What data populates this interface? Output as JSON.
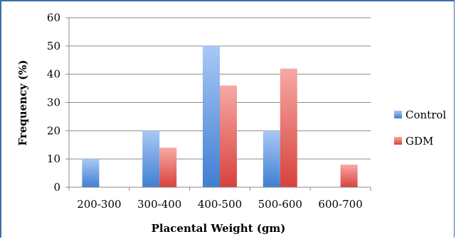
{
  "chart_data": {
    "type": "bar",
    "title": "",
    "xlabel": "Placental Weight (gm)",
    "ylabel": "Frequency (%)",
    "categories": [
      "200-300",
      "300-400",
      "400-500",
      "500-600",
      "600-700"
    ],
    "series": [
      {
        "name": "Control",
        "values": [
          10,
          20,
          50,
          20,
          0
        ]
      },
      {
        "name": "GDM",
        "values": [
          0,
          14,
          36,
          42,
          8
        ]
      }
    ],
    "ylim": [
      0,
      60
    ],
    "yticks": [
      0,
      10,
      20,
      30,
      40,
      50,
      60
    ],
    "grid": true,
    "legend_position": "right",
    "colors": {
      "Control_top": "#a9c8f5",
      "Control_bottom": "#3f7fd1",
      "GDM_top": "#f7a9a5",
      "GDM_bottom": "#d8413c"
    }
  }
}
